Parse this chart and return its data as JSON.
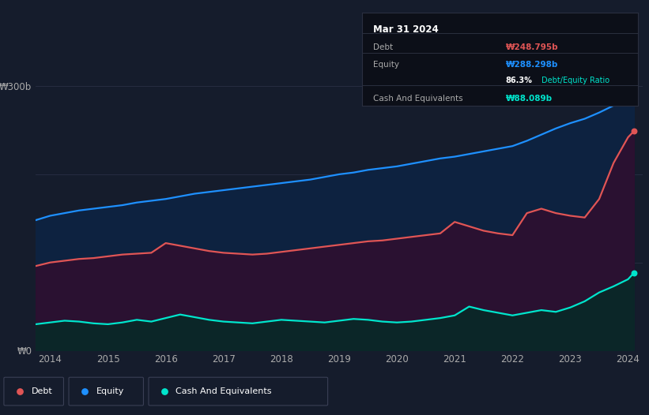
{
  "background_color": "#151c2c",
  "plot_bg_color": "#151c2c",
  "ylabel_300": "₩300b",
  "ylabel_0": "₩0",
  "x_labels": [
    "2014",
    "2015",
    "2016",
    "2017",
    "2018",
    "2019",
    "2020",
    "2021",
    "2022",
    "2023",
    "2024"
  ],
  "legend_colors": [
    "#e05555",
    "#1e90ff",
    "#00e5cc"
  ],
  "line_colors": [
    "#e05555",
    "#1e90ff",
    "#00e5cc"
  ],
  "tooltip": {
    "date": "Mar 31 2024",
    "debt_label": "Debt",
    "debt_value": "₩248.795b",
    "debt_color": "#e05555",
    "equity_label": "Equity",
    "equity_value": "₩288.298b",
    "equity_color": "#1e90ff",
    "ratio": "86.3%",
    "ratio_label": "Debt/Equity Ratio",
    "ratio_color": "#00e5cc",
    "cash_label": "Cash And Equivalents",
    "cash_value": "₩88.089b",
    "cash_color": "#00e5cc"
  },
  "years": [
    2013.75,
    2014.0,
    2014.25,
    2014.5,
    2014.75,
    2015.0,
    2015.25,
    2015.5,
    2015.75,
    2016.0,
    2016.25,
    2016.5,
    2016.75,
    2017.0,
    2017.25,
    2017.5,
    2017.75,
    2018.0,
    2018.25,
    2018.5,
    2018.75,
    2019.0,
    2019.25,
    2019.5,
    2019.75,
    2020.0,
    2020.25,
    2020.5,
    2020.75,
    2021.0,
    2021.25,
    2021.5,
    2021.75,
    2022.0,
    2022.25,
    2022.5,
    2022.75,
    2023.0,
    2023.25,
    2023.5,
    2023.75,
    2024.0,
    2024.1
  ],
  "equity": [
    148,
    153,
    156,
    159,
    161,
    163,
    165,
    168,
    170,
    172,
    175,
    178,
    180,
    182,
    184,
    186,
    188,
    190,
    192,
    194,
    197,
    200,
    202,
    205,
    207,
    209,
    212,
    215,
    218,
    220,
    223,
    226,
    229,
    232,
    238,
    245,
    252,
    258,
    263,
    270,
    278,
    284,
    288.298
  ],
  "debt": [
    96,
    100,
    102,
    104,
    105,
    107,
    109,
    110,
    111,
    122,
    119,
    116,
    113,
    111,
    110,
    109,
    110,
    112,
    114,
    116,
    118,
    120,
    122,
    124,
    125,
    127,
    129,
    131,
    133,
    146,
    141,
    136,
    133,
    131,
    156,
    161,
    156,
    153,
    151,
    172,
    213,
    242,
    248.795
  ],
  "cash": [
    30,
    32,
    34,
    33,
    31,
    30,
    32,
    35,
    33,
    37,
    41,
    38,
    35,
    33,
    32,
    31,
    33,
    35,
    34,
    33,
    32,
    34,
    36,
    35,
    33,
    32,
    33,
    35,
    37,
    40,
    50,
    46,
    43,
    40,
    43,
    46,
    44,
    49,
    56,
    66,
    73,
    81,
    88.089
  ],
  "ylim": [
    0,
    320
  ],
  "xlim_min": 2013.75,
  "xlim_max": 2024.25
}
